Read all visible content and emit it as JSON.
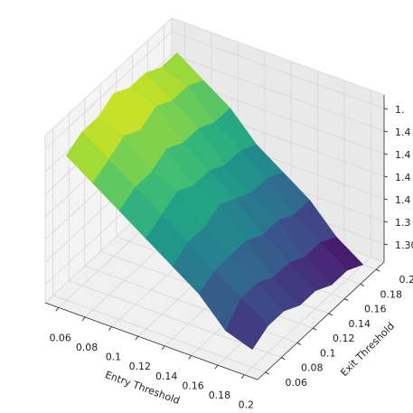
{
  "chart_data": {
    "type": "surface",
    "x_label": "Entry Threshold",
    "y_label": "Exit Threshold",
    "x": [
      0.06,
      0.08,
      0.1,
      0.12,
      0.14,
      0.16,
      0.18,
      0.2
    ],
    "y": [
      0.06,
      0.08,
      0.1,
      0.12,
      0.14,
      0.16,
      0.18,
      0.2
    ],
    "z": [
      [
        1.44,
        1.45,
        1.45,
        1.46,
        1.45,
        1.45,
        1.44,
        1.44
      ],
      [
        1.42,
        1.43,
        1.44,
        1.43,
        1.44,
        1.43,
        1.43,
        1.42
      ],
      [
        1.4,
        1.41,
        1.41,
        1.42,
        1.41,
        1.41,
        1.4,
        1.4
      ],
      [
        1.38,
        1.39,
        1.4,
        1.39,
        1.39,
        1.38,
        1.38,
        1.37
      ],
      [
        1.36,
        1.37,
        1.37,
        1.38,
        1.37,
        1.36,
        1.36,
        1.35
      ],
      [
        1.34,
        1.35,
        1.35,
        1.35,
        1.34,
        1.34,
        1.33,
        1.33
      ],
      [
        1.31,
        1.33,
        1.33,
        1.32,
        1.32,
        1.31,
        1.31,
        1.3
      ],
      [
        1.3,
        1.31,
        1.31,
        1.3,
        1.3,
        1.29,
        1.29,
        1.28
      ]
    ],
    "xlim": [
      0.05,
      0.21
    ],
    "ylim": [
      0.05,
      0.21
    ],
    "zlim": [
      1.28,
      1.465
    ],
    "xticks": [
      0.06,
      0.08,
      0.1,
      0.12,
      0.14,
      0.16,
      0.18,
      0.2
    ],
    "yticks": [
      0.06,
      0.08,
      0.1,
      0.12,
      0.14,
      0.16,
      0.18,
      0.2
    ],
    "zticks": [
      {
        "value": 1.3,
        "label": "1.30"
      },
      {
        "value": 1.325,
        "label": "1.3"
      },
      {
        "value": 1.35,
        "label": "1.4"
      },
      {
        "value": 1.375,
        "label": "1.4"
      },
      {
        "value": 1.4,
        "label": "1.4"
      },
      {
        "value": 1.425,
        "label": "1.4"
      },
      {
        "value": 1.45,
        "label": "1."
      }
    ],
    "colormap": "viridis",
    "grid": true
  }
}
